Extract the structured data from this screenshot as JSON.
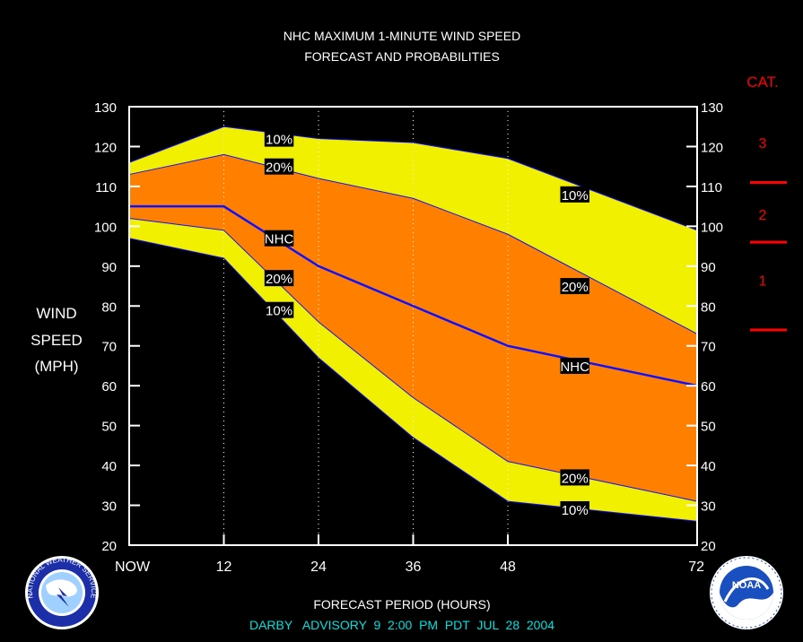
{
  "chart_data": {
    "type": "area",
    "title_lines": [
      "NHC MAXIMUM 1-MINUTE WIND SPEED",
      "FORECAST AND PROBABILITIES"
    ],
    "ylabel_lines": [
      "WIND",
      "SPEED",
      "(MPH)"
    ],
    "xlabel": "FORECAST PERIOD (HOURS)",
    "subtitle": "DARBY   ADVISORY  9  2:00  PM  PDT  JUL  28  2004",
    "x_ticks": [
      {
        "value": 0,
        "label": "NOW"
      },
      {
        "value": 12,
        "label": "12"
      },
      {
        "value": 24,
        "label": "24"
      },
      {
        "value": 36,
        "label": "36"
      },
      {
        "value": 48,
        "label": "48"
      },
      {
        "value": 72,
        "label": "72"
      }
    ],
    "y_ticks": [
      20,
      30,
      40,
      50,
      60,
      70,
      80,
      90,
      100,
      110,
      120,
      130
    ],
    "xlim": [
      0,
      72
    ],
    "ylim": [
      20,
      130
    ],
    "grid": "vertical dotted at 12, 24, 36, 48",
    "x": [
      0,
      12,
      24,
      36,
      48,
      72
    ],
    "series": [
      {
        "name": "10%",
        "role": "upper-10",
        "values": [
          116,
          125,
          122,
          121,
          117,
          99
        ],
        "color": "#f0f000"
      },
      {
        "name": "20%",
        "role": "upper-20",
        "values": [
          113,
          118,
          112,
          107,
          98,
          73
        ],
        "color": "#ff8000"
      },
      {
        "name": "NHC",
        "role": "forecast",
        "values": [
          105,
          105,
          90,
          80,
          70,
          60
        ],
        "color": "#1010ff"
      },
      {
        "name": "20%",
        "role": "lower-20",
        "values": [
          102,
          99,
          76,
          57,
          41,
          31
        ],
        "color": "#ff8000"
      },
      {
        "name": "10%",
        "role": "lower-10",
        "values": [
          97,
          92,
          67,
          47,
          31,
          26
        ],
        "color": "#f0f000"
      }
    ],
    "labels": [
      {
        "text": "10%",
        "x": 19,
        "y": 122
      },
      {
        "text": "20%",
        "x": 19,
        "y": 115
      },
      {
        "text": "NHC",
        "x": 19,
        "y": 97
      },
      {
        "text": "20%",
        "x": 19,
        "y": 87
      },
      {
        "text": "10%",
        "x": 19,
        "y": 79
      },
      {
        "text": "10%",
        "x": 56.5,
        "y": 108
      },
      {
        "text": "20%",
        "x": 56.5,
        "y": 85
      },
      {
        "text": "NHC",
        "x": 56.5,
        "y": 65
      },
      {
        "text": "20%",
        "x": 56.5,
        "y": 37
      },
      {
        "text": "10%",
        "x": 56.5,
        "y": 29
      }
    ],
    "category_scale": {
      "header": "CAT.",
      "bands": [
        {
          "label": "3",
          "at": 121
        },
        {
          "label": "2",
          "at": 103
        },
        {
          "label": "1",
          "at": 86.5
        }
      ],
      "thresholds": [
        111,
        96,
        74
      ],
      "color": "#ff0000"
    },
    "logos": {
      "left": {
        "name": "national-weather-service-logo",
        "text": "NATIONAL WEATHER SERVICE"
      },
      "right": {
        "name": "noaa-logo",
        "text": "NOAA"
      }
    }
  }
}
